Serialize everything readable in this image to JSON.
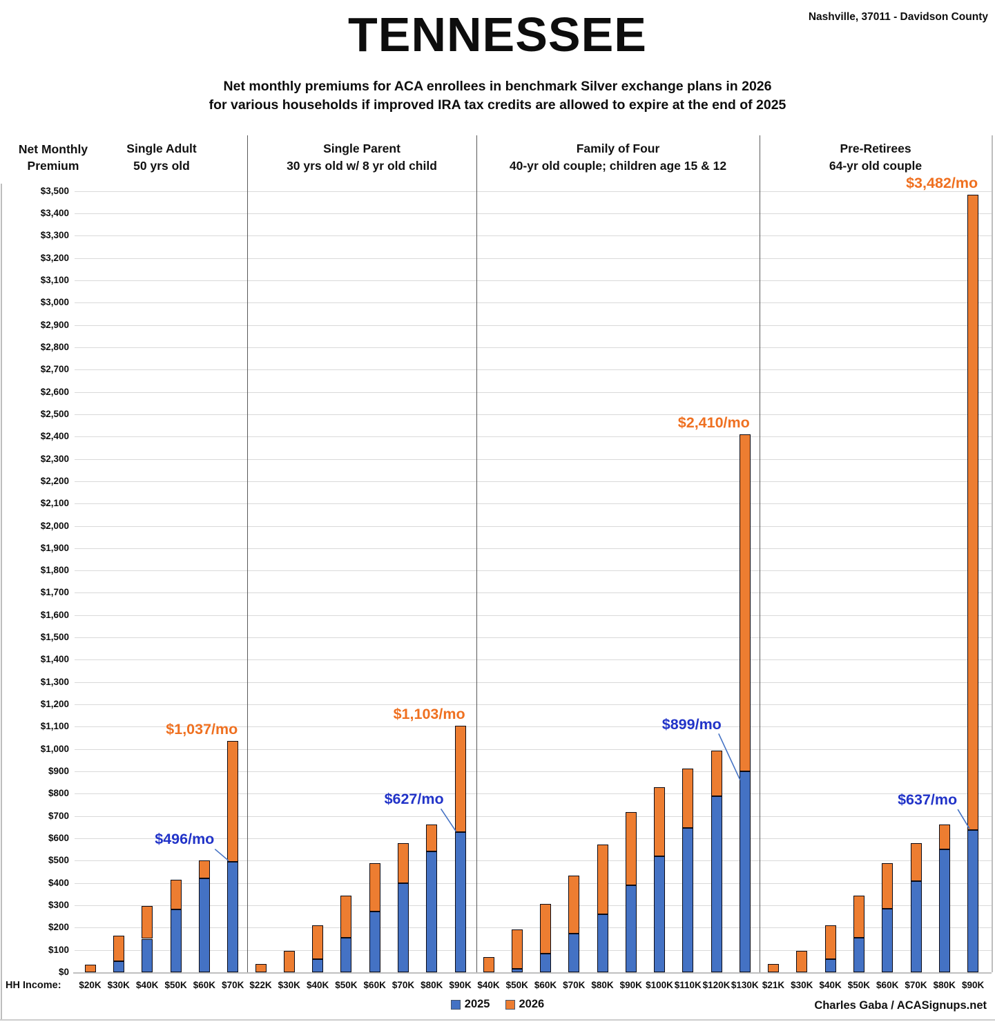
{
  "header": {
    "title": "TENNESSEE",
    "location": "Nashville, 37011 - Davidson County",
    "subtitle_line1": "Net monthly premiums for ACA enrollees in benchmark Silver exchange plans in 2026",
    "subtitle_line2": "for various households if improved IRA tax credits are allowed to expire at the end of 2025"
  },
  "footer": {
    "hh_income_label": "HH Income:",
    "credit": "Charles Gaba / ACASignups.net"
  },
  "legend": {
    "items": [
      {
        "label": "2025",
        "color": "#4472C4"
      },
      {
        "label": "2026",
        "color": "#ED7D31"
      }
    ]
  },
  "colors": {
    "bar_2025": "#4472C4",
    "bar_2026": "#ED7D31",
    "bar_border": "#0a0a14",
    "callout_2025_text": "#2133c8",
    "callout_2026_text": "#ef7020",
    "leader_line": "#4472C4",
    "gridline": "#d9d9d9",
    "divider": "#595959"
  },
  "chart_data": {
    "type": "bar",
    "stacked": true,
    "title": "TENNESSEE",
    "ylabel": "Net Monthly Premium",
    "xlabel": "HH Income:",
    "ylim": [
      0,
      3500
    ],
    "ytick_step": 100,
    "grid": true,
    "legend_position": "bottom",
    "series_names": [
      "2025",
      "2026"
    ],
    "note": "values_2026_total are full stacked-bar heights (net 2026 premium); orange segment height = 2026 total minus 2025 value",
    "groups": [
      {
        "name": "Single Adult",
        "desc": "50 yrs old",
        "categories": [
          "$20K",
          "$30K",
          "$40K",
          "$50K",
          "$60K",
          "$70K"
        ],
        "values_2025": [
          0,
          50,
          150,
          282,
          420,
          496
        ],
        "values_2026_total": [
          35,
          165,
          298,
          415,
          500,
          1037
        ],
        "callout_2026": {
          "text": "$1,037/mo",
          "bar": 5
        },
        "callout_2025": {
          "text": "$496/mo",
          "bar": 5
        }
      },
      {
        "name": "Single Parent",
        "desc": "30 yrs old w/ 8 yr old child",
        "categories": [
          "$22K",
          "$30K",
          "$40K",
          "$50K",
          "$60K",
          "$70K",
          "$80K",
          "$90K"
        ],
        "values_2025": [
          0,
          0,
          58,
          154,
          273,
          400,
          542,
          627
        ],
        "values_2026_total": [
          38,
          97,
          211,
          344,
          490,
          579,
          663,
          1103
        ],
        "callout_2026": {
          "text": "$1,103/mo",
          "bar": 7
        },
        "callout_2025": {
          "text": "$627/mo",
          "bar": 7
        }
      },
      {
        "name": "Family of Four",
        "desc": "40-yr old couple; children age 15 & 12",
        "categories": [
          "$40K",
          "$50K",
          "$60K",
          "$70K",
          "$80K",
          "$90K",
          "$100K",
          "$110K",
          "$120K",
          "$130K"
        ],
        "values_2025": [
          0,
          16,
          84,
          172,
          259,
          391,
          520,
          647,
          788,
          899
        ],
        "values_2026_total": [
          68,
          193,
          306,
          434,
          571,
          718,
          829,
          913,
          992,
          2410
        ],
        "callout_2026": {
          "text": "$2,410/mo",
          "bar": 9
        },
        "callout_2025": {
          "text": "$899/mo",
          "bar": 9
        }
      },
      {
        "name": "Pre-Retirees",
        "desc": "64-yr old couple",
        "categories": [
          "$21K",
          "$30K",
          "$40K",
          "$50K",
          "$60K",
          "$70K",
          "$80K",
          "$90K"
        ],
        "values_2025": [
          0,
          0,
          58,
          156,
          285,
          408,
          550,
          637
        ],
        "values_2026_total": [
          36,
          96,
          212,
          344,
          490,
          579,
          662,
          3482
        ],
        "callout_2026": {
          "text": "$3,482/mo",
          "bar": 7
        },
        "callout_2025": {
          "text": "$637/mo",
          "bar": 7
        }
      }
    ]
  }
}
